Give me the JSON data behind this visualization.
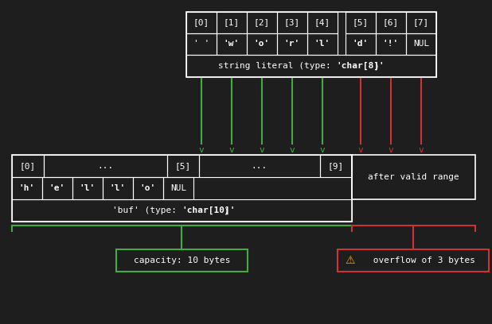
{
  "bg_color": "#1e1e1e",
  "white": "#ffffff",
  "green": "#44aa44",
  "red": "#cc3333",
  "yellow": "#ffaa00",
  "string_indices": [
    "[0]",
    "[1]",
    "[2]",
    "[3]",
    "[4]",
    "[5]",
    "[6]",
    "[7]"
  ],
  "string_chars": [
    "' '",
    "'w'",
    "'o'",
    "'r'",
    "'l'",
    "'d'",
    "'!'",
    "NUL"
  ],
  "buf_chars": [
    "'h'",
    "'e'",
    "'l'",
    "'l'",
    "'o'",
    "NUL"
  ],
  "capacity_label": "capacity: 10 bytes",
  "overflow_label": "⚠ overflow of 3 bytes",
  "after_valid_label": "after valid range"
}
